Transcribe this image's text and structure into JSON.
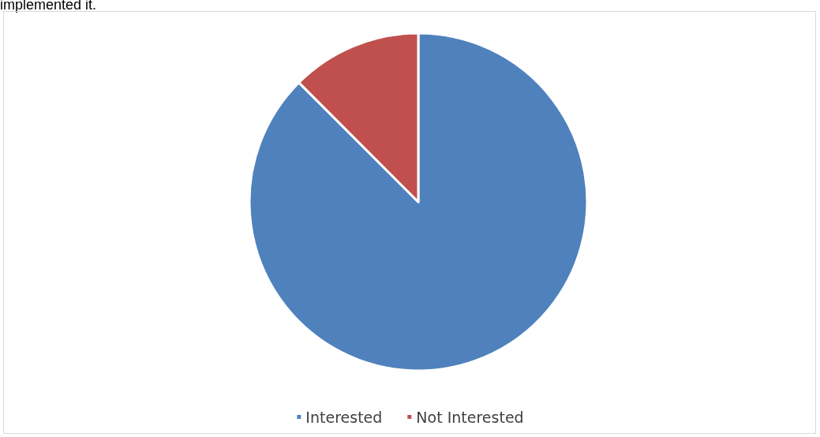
{
  "chart_data": {
    "type": "pie",
    "annotations": [
      "implemented it."
    ],
    "categories": [
      "Interested",
      "Not Interested"
    ],
    "values": [
      87.5,
      12.5
    ],
    "colors": [
      "#4f81bd",
      "#c0504d"
    ],
    "legend": "bottom"
  }
}
